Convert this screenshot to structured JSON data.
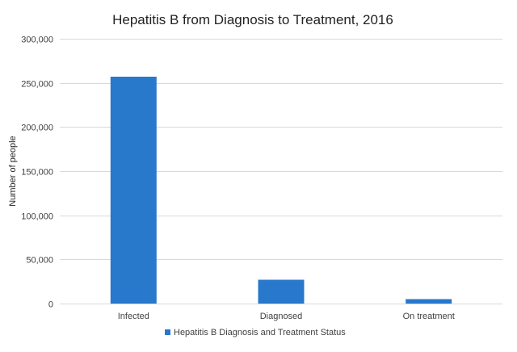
{
  "chart_data": {
    "type": "bar",
    "title": "Hepatitis B from Diagnosis to Treatment, 2016",
    "xlabel": "",
    "ylabel": "Number of people",
    "categories": [
      "Infected",
      "Diagnosed",
      "On treatment"
    ],
    "series": [
      {
        "name": "Hepatitis B Diagnosis and Treatment Status",
        "values": [
          257000,
          27000,
          5000
        ],
        "color": "#2878cc"
      }
    ],
    "ylim": [
      0,
      300000
    ],
    "yticks": [
      0,
      50000,
      100000,
      150000,
      200000,
      250000,
      300000
    ],
    "ytick_labels": [
      "0",
      "50,000",
      "100,000",
      "150,000",
      "200,000",
      "250,000",
      "300,000"
    ],
    "grid": true,
    "gridline_color": "#d9d9d9",
    "legend_position": "bottom"
  }
}
